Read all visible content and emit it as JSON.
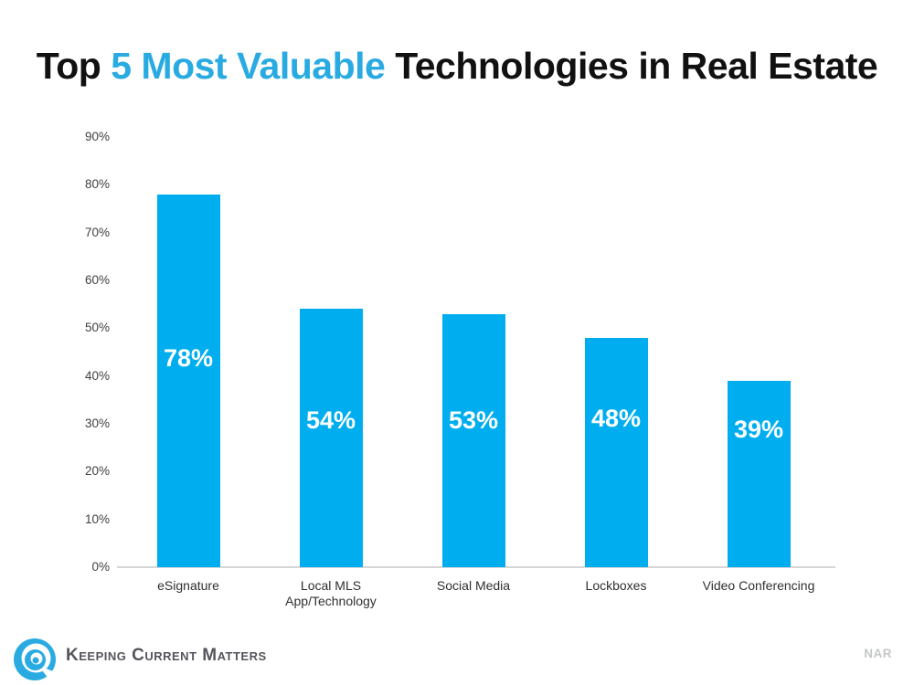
{
  "title": {
    "prefix": "Top ",
    "highlight": "5 Most Valuable",
    "suffix": " Technologies in Real Estate",
    "highlight_color": "#29ABE2"
  },
  "chart_data": {
    "type": "bar",
    "title": "Top 5 Most Valuable Technologies in Real Estate",
    "categories": [
      "eSignature",
      "Local MLS\nApp/Technology",
      "Social Media",
      "Lockboxes",
      "Video Conferencing"
    ],
    "values": [
      78,
      54,
      53,
      48,
      39
    ],
    "value_labels": [
      "78%",
      "54%",
      "53%",
      "48%",
      "39%"
    ],
    "xlabel": "",
    "ylabel": "",
    "ylim": [
      0,
      90
    ],
    "ytick_step": 10,
    "ytick_labels": [
      "0%",
      "10%",
      "20%",
      "30%",
      "40%",
      "50%",
      "60%",
      "70%",
      "80%",
      "90%"
    ],
    "grid": false,
    "legend": false,
    "bar_color": "#00AEEF",
    "value_label_color": "#FFFFFF",
    "axis_line_color": "#D6D6D6",
    "tick_label_color": "#404040"
  },
  "footer": {
    "brand": "Keeping Current Matters",
    "source": "NAR",
    "logo_color": "#29ABE2",
    "brand_color": "#54565C",
    "source_color": "#C5C7C9"
  }
}
